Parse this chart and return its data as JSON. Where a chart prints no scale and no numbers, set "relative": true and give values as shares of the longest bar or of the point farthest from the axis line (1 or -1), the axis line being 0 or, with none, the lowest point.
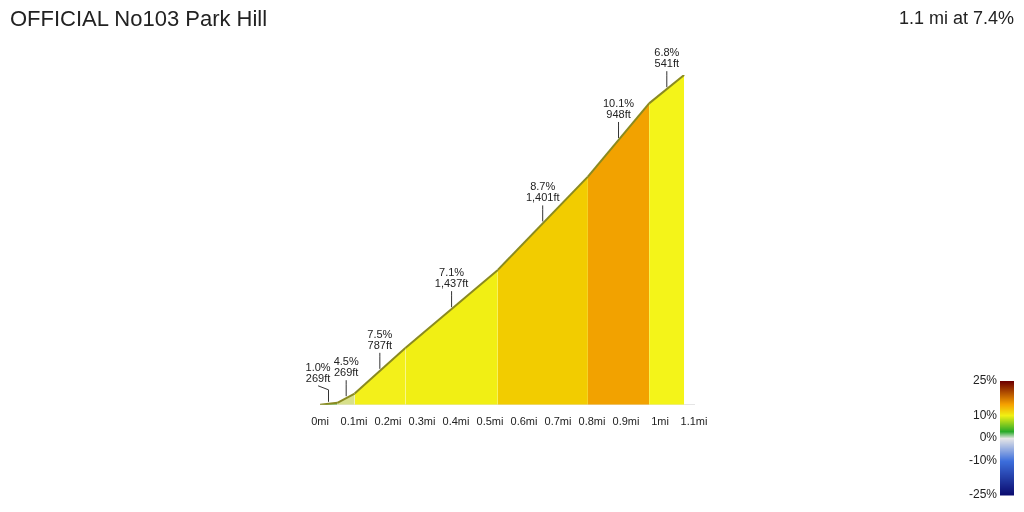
{
  "chart_data": {
    "type": "area",
    "title": "OFFICIAL No103 Park Hill",
    "subtitle": "1.1 mi at 7.4%",
    "relative": true,
    "series": [
      {
        "color": "#5ab030",
        "x": [
          0,
          0.051
        ],
        "values": [
          0,
          0.006
        ]
      },
      {
        "color": "#d8e08a",
        "x": [
          0.051,
          0.102
        ],
        "values": [
          0.006,
          0.034
        ]
      },
      {
        "color": "#f3f01a",
        "x": [
          0.102,
          0.251
        ],
        "values": [
          0.034,
          0.172
        ]
      },
      {
        "color": "#f1ef14",
        "x": [
          0.251,
          0.523
        ],
        "values": [
          0.172,
          0.409
        ]
      },
      {
        "color": "#f2cc00",
        "x": [
          0.523,
          0.788
        ],
        "values": [
          0.409,
          0.692
        ]
      },
      {
        "color": "#f2a200",
        "x": [
          0.788,
          0.968
        ],
        "values": [
          0.692,
          0.914
        ]
      },
      {
        "color": "#f4f419",
        "x": [
          0.968,
          1.071
        ],
        "values": [
          0.914,
          1
        ]
      }
    ],
    "xlim": [
      0,
      1.1
    ],
    "xticks": [
      {
        "value": 0,
        "label": "0mi"
      },
      {
        "value": 0.1,
        "label": "0.1mi"
      },
      {
        "value": 0.2,
        "label": "0.2mi"
      },
      {
        "value": 0.3,
        "label": "0.3mi"
      },
      {
        "value": 0.4,
        "label": "0.4mi"
      },
      {
        "value": 0.5,
        "label": "0.5mi"
      },
      {
        "value": 0.6,
        "label": "0.6mi"
      },
      {
        "value": 0.7,
        "label": "0.7mi"
      },
      {
        "value": 0.8,
        "label": "0.8mi"
      },
      {
        "value": 0.9,
        "label": "0.9mi"
      },
      {
        "value": 1,
        "label": "1mi"
      },
      {
        "value": 1.1,
        "label": "1.1mi"
      }
    ],
    "annotations": [
      {
        "text": "1.0%\n269ft",
        "x": 0.025,
        "y": 0.003
      },
      {
        "text": "4.5%\n269ft",
        "x": 0.077,
        "y": 0.02
      },
      {
        "text": "7.5%\n787ft",
        "x": 0.176,
        "y": 0.103
      },
      {
        "text": "7.1%\n1,437ft",
        "x": 0.387,
        "y": 0.29
      },
      {
        "text": "8.7%\n1,401ft",
        "x": 0.655,
        "y": 0.55
      },
      {
        "text": "10.1%\n948ft",
        "x": 0.878,
        "y": 0.803
      },
      {
        "text": "6.8%\n541ft",
        "x": 1.02,
        "y": 0.957
      }
    ],
    "clim": [
      -25,
      25
    ],
    "cticks": [
      {
        "value": 25,
        "label": "25%"
      },
      {
        "value": 10,
        "label": "10%"
      },
      {
        "value": 0,
        "label": "0%"
      },
      {
        "value": -10,
        "label": "-10%"
      },
      {
        "value": -25,
        "label": "-25%"
      }
    ],
    "grid": false,
    "legend": false,
    "marker": "none"
  }
}
